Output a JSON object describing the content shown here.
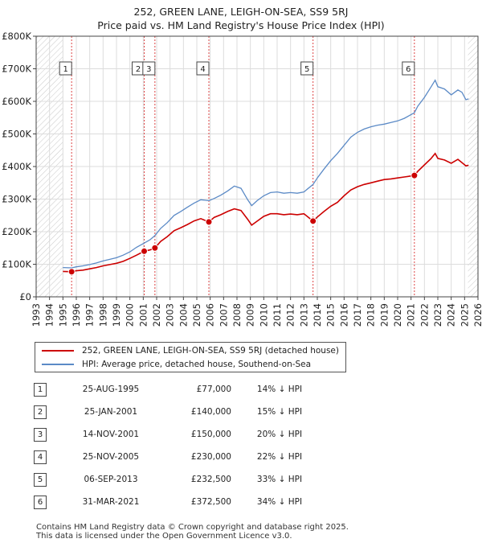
{
  "title_line1": "252, GREEN LANE, LEIGH-ON-SEA, SS9 5RJ",
  "title_line2": "Price paid vs. HM Land Registry's House Price Index (HPI)",
  "chart_data": {
    "type": "line",
    "title": "252, GREEN LANE, LEIGH-ON-SEA, SS9 5RJ — Price paid vs. HM Land Registry's House Price Index (HPI)",
    "xlim": [
      1993,
      2026
    ],
    "ylim": [
      0,
      800000
    ],
    "x_ticks": [
      "1993",
      "1994",
      "1995",
      "1996",
      "1997",
      "1998",
      "1999",
      "2000",
      "2001",
      "2002",
      "2003",
      "2004",
      "2005",
      "2006",
      "2007",
      "2008",
      "2009",
      "2010",
      "2011",
      "2012",
      "2013",
      "2014",
      "2015",
      "2016",
      "2017",
      "2018",
      "2019",
      "2020",
      "2021",
      "2022",
      "2023",
      "2024",
      "2025",
      "2026"
    ],
    "y_ticks": [
      {
        "value": 0,
        "label": "£0"
      },
      {
        "value": 100000,
        "label": "£100K"
      },
      {
        "value": 200000,
        "label": "£200K"
      },
      {
        "value": 300000,
        "label": "£300K"
      },
      {
        "value": 400000,
        "label": "£400K"
      },
      {
        "value": 500000,
        "label": "£500K"
      },
      {
        "value": 600000,
        "label": "£600K"
      },
      {
        "value": 700000,
        "label": "£700K"
      },
      {
        "value": 800000,
        "label": "£800K"
      }
    ],
    "hatched_regions": [
      [
        1993,
        1995.0
      ],
      [
        2025.25,
        2026
      ]
    ],
    "series": [
      {
        "name": "252, GREEN LANE, LEIGH-ON-SEA, SS9 5RJ (detached house)",
        "color": "#cc0000",
        "points": [
          [
            1995.0,
            78000
          ],
          [
            1995.65,
            77000
          ],
          [
            1996.0,
            80000
          ],
          [
            1996.5,
            82000
          ],
          [
            1997.0,
            86000
          ],
          [
            1997.5,
            90000
          ],
          [
            1998.0,
            95000
          ],
          [
            1998.5,
            99000
          ],
          [
            1999.0,
            103000
          ],
          [
            1999.5,
            109000
          ],
          [
            2000.0,
            118000
          ],
          [
            2000.5,
            128000
          ],
          [
            2001.07,
            140000
          ],
          [
            2001.5,
            144000
          ],
          [
            2001.87,
            150000
          ],
          [
            2002.3,
            170000
          ],
          [
            2002.8,
            185000
          ],
          [
            2003.3,
            203000
          ],
          [
            2003.8,
            212000
          ],
          [
            2004.3,
            222000
          ],
          [
            2004.8,
            233000
          ],
          [
            2005.3,
            240000
          ],
          [
            2005.9,
            230000
          ],
          [
            2006.3,
            244000
          ],
          [
            2006.8,
            252000
          ],
          [
            2007.3,
            262000
          ],
          [
            2007.8,
            270000
          ],
          [
            2008.3,
            265000
          ],
          [
            2008.8,
            238000
          ],
          [
            2009.1,
            220000
          ],
          [
            2009.5,
            232000
          ],
          [
            2010.0,
            247000
          ],
          [
            2010.5,
            255000
          ],
          [
            2011.0,
            255000
          ],
          [
            2011.5,
            252000
          ],
          [
            2012.0,
            254000
          ],
          [
            2012.5,
            252000
          ],
          [
            2013.0,
            255000
          ],
          [
            2013.68,
            232500
          ],
          [
            2014.0,
            245000
          ],
          [
            2014.5,
            262000
          ],
          [
            2015.0,
            278000
          ],
          [
            2015.5,
            290000
          ],
          [
            2016.0,
            310000
          ],
          [
            2016.5,
            328000
          ],
          [
            2017.0,
            338000
          ],
          [
            2017.5,
            345000
          ],
          [
            2018.0,
            350000
          ],
          [
            2018.5,
            355000
          ],
          [
            2019.0,
            360000
          ],
          [
            2019.5,
            362000
          ],
          [
            2020.0,
            365000
          ],
          [
            2020.5,
            368000
          ],
          [
            2021.25,
            372500
          ],
          [
            2021.5,
            385000
          ],
          [
            2022.0,
            405000
          ],
          [
            2022.5,
            425000
          ],
          [
            2022.8,
            440000
          ],
          [
            2023.0,
            425000
          ],
          [
            2023.5,
            420000
          ],
          [
            2024.0,
            410000
          ],
          [
            2024.5,
            422000
          ],
          [
            2024.8,
            412000
          ],
          [
            2025.1,
            402000
          ],
          [
            2025.3,
            404000
          ]
        ]
      },
      {
        "name": "HPI: Average price, detached house, Southend-on-Sea",
        "color": "#5b8ac6",
        "points": [
          [
            1995.0,
            90000
          ],
          [
            1995.65,
            89000
          ],
          [
            1996.0,
            92000
          ],
          [
            1996.5,
            95000
          ],
          [
            1997.0,
            99000
          ],
          [
            1997.5,
            104000
          ],
          [
            1998.0,
            110000
          ],
          [
            1998.5,
            115000
          ],
          [
            1999.0,
            120000
          ],
          [
            1999.5,
            128000
          ],
          [
            2000.0,
            138000
          ],
          [
            2000.5,
            152000
          ],
          [
            2001.07,
            165000
          ],
          [
            2001.5,
            175000
          ],
          [
            2001.87,
            188000
          ],
          [
            2002.3,
            210000
          ],
          [
            2002.8,
            228000
          ],
          [
            2003.3,
            250000
          ],
          [
            2003.8,
            262000
          ],
          [
            2004.3,
            275000
          ],
          [
            2004.8,
            288000
          ],
          [
            2005.3,
            298000
          ],
          [
            2005.9,
            295000
          ],
          [
            2006.3,
            302000
          ],
          [
            2006.8,
            312000
          ],
          [
            2007.3,
            325000
          ],
          [
            2007.8,
            340000
          ],
          [
            2008.3,
            333000
          ],
          [
            2008.8,
            298000
          ],
          [
            2009.1,
            280000
          ],
          [
            2009.5,
            295000
          ],
          [
            2010.0,
            310000
          ],
          [
            2010.5,
            320000
          ],
          [
            2011.0,
            322000
          ],
          [
            2011.5,
            318000
          ],
          [
            2012.0,
            320000
          ],
          [
            2012.5,
            318000
          ],
          [
            2013.0,
            322000
          ],
          [
            2013.68,
            345000
          ],
          [
            2014.0,
            365000
          ],
          [
            2014.5,
            392000
          ],
          [
            2015.0,
            418000
          ],
          [
            2015.5,
            440000
          ],
          [
            2016.0,
            465000
          ],
          [
            2016.5,
            490000
          ],
          [
            2017.0,
            505000
          ],
          [
            2017.5,
            515000
          ],
          [
            2018.0,
            522000
          ],
          [
            2018.5,
            527000
          ],
          [
            2019.0,
            530000
          ],
          [
            2019.5,
            535000
          ],
          [
            2020.0,
            540000
          ],
          [
            2020.5,
            548000
          ],
          [
            2021.25,
            565000
          ],
          [
            2021.5,
            585000
          ],
          [
            2022.0,
            612000
          ],
          [
            2022.5,
            645000
          ],
          [
            2022.8,
            665000
          ],
          [
            2023.0,
            645000
          ],
          [
            2023.5,
            638000
          ],
          [
            2024.0,
            620000
          ],
          [
            2024.5,
            635000
          ],
          [
            2024.8,
            628000
          ],
          [
            2025.1,
            605000
          ],
          [
            2025.3,
            608000
          ]
        ]
      }
    ],
    "sales": [
      {
        "n": "1",
        "t": 1995.65,
        "value": 77000
      },
      {
        "n": "2",
        "t": 2001.07,
        "value": 140000
      },
      {
        "n": "3",
        "t": 2001.87,
        "value": 150000
      },
      {
        "n": "4",
        "t": 2005.9,
        "value": 230000
      },
      {
        "n": "5",
        "t": 2013.68,
        "value": 232500
      },
      {
        "n": "6",
        "t": 2021.25,
        "value": 372500
      }
    ]
  },
  "legend": {
    "red_label": "252, GREEN LANE, LEIGH-ON-SEA, SS9 5RJ (detached house)",
    "blue_label": "HPI: Average price, detached house, Southend-on-Sea"
  },
  "sales_table": [
    {
      "num": "1",
      "date": "25-AUG-1995",
      "price": "£77,000",
      "hpi": "14% ↓ HPI"
    },
    {
      "num": "2",
      "date": "25-JAN-2001",
      "price": "£140,000",
      "hpi": "15% ↓ HPI"
    },
    {
      "num": "3",
      "date": "14-NOV-2001",
      "price": "£150,000",
      "hpi": "20% ↓ HPI"
    },
    {
      "num": "4",
      "date": "25-NOV-2005",
      "price": "£230,000",
      "hpi": "22% ↓ HPI"
    },
    {
      "num": "5",
      "date": "06-SEP-2013",
      "price": "£232,500",
      "hpi": "33% ↓ HPI"
    },
    {
      "num": "6",
      "date": "31-MAR-2021",
      "price": "£372,500",
      "hpi": "34% ↓ HPI"
    }
  ],
  "footer_line1": "Contains HM Land Registry data © Crown copyright and database right 2025.",
  "footer_line2": "This data is licensed under the Open Government Licence v3.0."
}
